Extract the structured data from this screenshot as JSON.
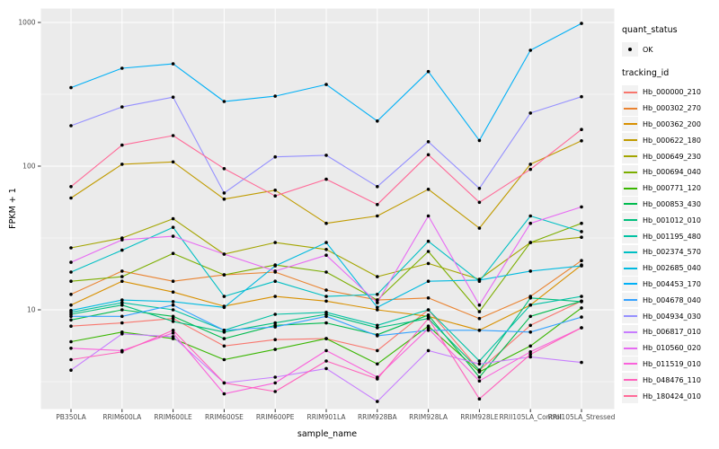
{
  "colors": {
    "panel_background": "#EBEBEB",
    "gridline": "#FFFFFF",
    "tick_text": "#4D4D4D",
    "axis_title_text": "#000000",
    "data_point": "#000000",
    "legend_key_background": "#F2F2F2"
  },
  "axes": {
    "y_title": "FPKM + 1",
    "x_title": "sample_name",
    "y_tick_labels": [
      "10",
      "100",
      "1000"
    ],
    "y_tick_values": [
      10,
      100,
      1000
    ],
    "y_minor_values": [
      3.162,
      31.62,
      316.2
    ]
  },
  "legend": {
    "quant_status": {
      "title": "quant_status",
      "items": [
        {
          "label": "OK",
          "marker": "black-point"
        }
      ]
    },
    "tracking_id": {
      "title": "tracking_id"
    }
  },
  "chart_data": {
    "type": "line",
    "title": "",
    "xlabel": "sample_name",
    "ylabel": "FPKM + 1",
    "y_scale": "log10",
    "ylim": [
      2,
      1250
    ],
    "grid": true,
    "legend_position": "right",
    "point_marker": "black dot on every vertex (quant_status = OK)",
    "categories": [
      "PB350LA",
      "RRIM600LA",
      "RRIM600LE",
      "RRIM600SE",
      "RRIM600PE",
      "RRIM901LA",
      "RRIM928BA",
      "RRIM928LA",
      "RRIM928LE",
      "RRII105LA_Control",
      "RRII105LA_Stressed"
    ],
    "series": [
      {
        "name": "Hb_000000_210",
        "color": "#F8766D",
        "values": [
          7.7,
          8.1,
          8.7,
          5.6,
          6.2,
          6.3,
          5.2,
          10,
          3.8,
          7.8,
          11.5
        ]
      },
      {
        "name": "Hb_000302_270",
        "color": "#EA8331",
        "values": [
          12.8,
          18.6,
          15.8,
          17.5,
          18.3,
          13.7,
          11.7,
          12.1,
          8.7,
          12.4,
          22
        ]
      },
      {
        "name": "Hb_000362_200",
        "color": "#D89000",
        "values": [
          10.8,
          15.8,
          13.3,
          10.6,
          12.4,
          11.5,
          10,
          9,
          7.2,
          10.8,
          20.5
        ]
      },
      {
        "name": "Hb_000622_180",
        "color": "#C09B00",
        "values": [
          60,
          103,
          107,
          59,
          68,
          40,
          45,
          69,
          37,
          103,
          150
        ]
      },
      {
        "name": "Hb_000649_230",
        "color": "#A3A500",
        "values": [
          27,
          31.6,
          43,
          24.4,
          29.4,
          26.3,
          17,
          21,
          16.3,
          29.4,
          32
        ]
      },
      {
        "name": "Hb_000694_040",
        "color": "#7CAE00",
        "values": [
          15.8,
          17,
          24.7,
          17.5,
          20.5,
          18.3,
          11.7,
          25.5,
          9.7,
          29.4,
          40
        ]
      },
      {
        "name": "Hb_000771_120",
        "color": "#39B600",
        "values": [
          6,
          7,
          6.3,
          4.5,
          5.3,
          6.3,
          4.2,
          7.7,
          3.7,
          5.6,
          10.3
        ]
      },
      {
        "name": "Hb_000853_430",
        "color": "#00BB4E",
        "values": [
          8.5,
          10,
          9,
          6.3,
          7.8,
          8.1,
          6.7,
          9.2,
          3.4,
          9,
          11.5
        ]
      },
      {
        "name": "Hb_001012_010",
        "color": "#00BF7D",
        "values": [
          9.3,
          10.8,
          8.3,
          7,
          8.1,
          9.3,
          7.5,
          8.7,
          3.8,
          12.1,
          11.4
        ]
      },
      {
        "name": "Hb_001195_480",
        "color": "#00C1A3",
        "values": [
          9.6,
          11.2,
          10,
          7.2,
          9.3,
          9.6,
          7.8,
          10,
          4.4,
          10.8,
          12.4
        ]
      },
      {
        "name": "Hb_002374_570",
        "color": "#00BFC4",
        "values": [
          18.3,
          26,
          37.5,
          12.4,
          15.8,
          12.4,
          12.8,
          30,
          15.8,
          45,
          35
        ]
      },
      {
        "name": "Hb_002685_040",
        "color": "#00BAE0",
        "values": [
          9.9,
          11.7,
          11.4,
          10.4,
          20.2,
          29.4,
          10.4,
          15.8,
          16.1,
          18.6,
          20.2
        ]
      },
      {
        "name": "Hb_004453_170",
        "color": "#00B0F6",
        "values": [
          352,
          480,
          515,
          282,
          307,
          370,
          206,
          455,
          151,
          640,
          985
        ]
      },
      {
        "name": "Hb_004678_040",
        "color": "#35A2FF",
        "values": [
          9,
          9,
          10.8,
          7.2,
          7.6,
          9,
          6.6,
          7.2,
          7.2,
          7,
          8.9
        ]
      },
      {
        "name": "Hb_004934_030",
        "color": "#9590FF",
        "values": [
          191,
          258,
          302,
          65,
          116,
          119,
          72,
          148,
          70,
          234,
          304
        ]
      },
      {
        "name": "Hb_006817_010",
        "color": "#C77CFF",
        "values": [
          3.8,
          6.8,
          6.5,
          3.1,
          3.4,
          3.9,
          2.3,
          5.2,
          4.2,
          4.7,
          4.3
        ]
      },
      {
        "name": "Hb_010560_020",
        "color": "#E76BF3",
        "values": [
          21.4,
          30.7,
          32.5,
          24.4,
          18.6,
          24,
          11.2,
          45,
          10.8,
          40,
          52
        ]
      },
      {
        "name": "Hb_011519_010",
        "color": "#FA62DB",
        "values": [
          5.4,
          5.2,
          6.9,
          2.6,
          3.1,
          5.2,
          3.4,
          7.4,
          3.2,
          5.1,
          7.5
        ]
      },
      {
        "name": "Hb_048476_110",
        "color": "#FF62BC",
        "values": [
          4.5,
          5.1,
          7.2,
          3.1,
          2.7,
          4.4,
          3.3,
          8.7,
          2.4,
          4.9,
          7.5
        ]
      },
      {
        "name": "Hb_180424_010",
        "color": "#FF6A98",
        "values": [
          72,
          140,
          163,
          96,
          62,
          81,
          54,
          120,
          56,
          95,
          180
        ]
      }
    ]
  }
}
